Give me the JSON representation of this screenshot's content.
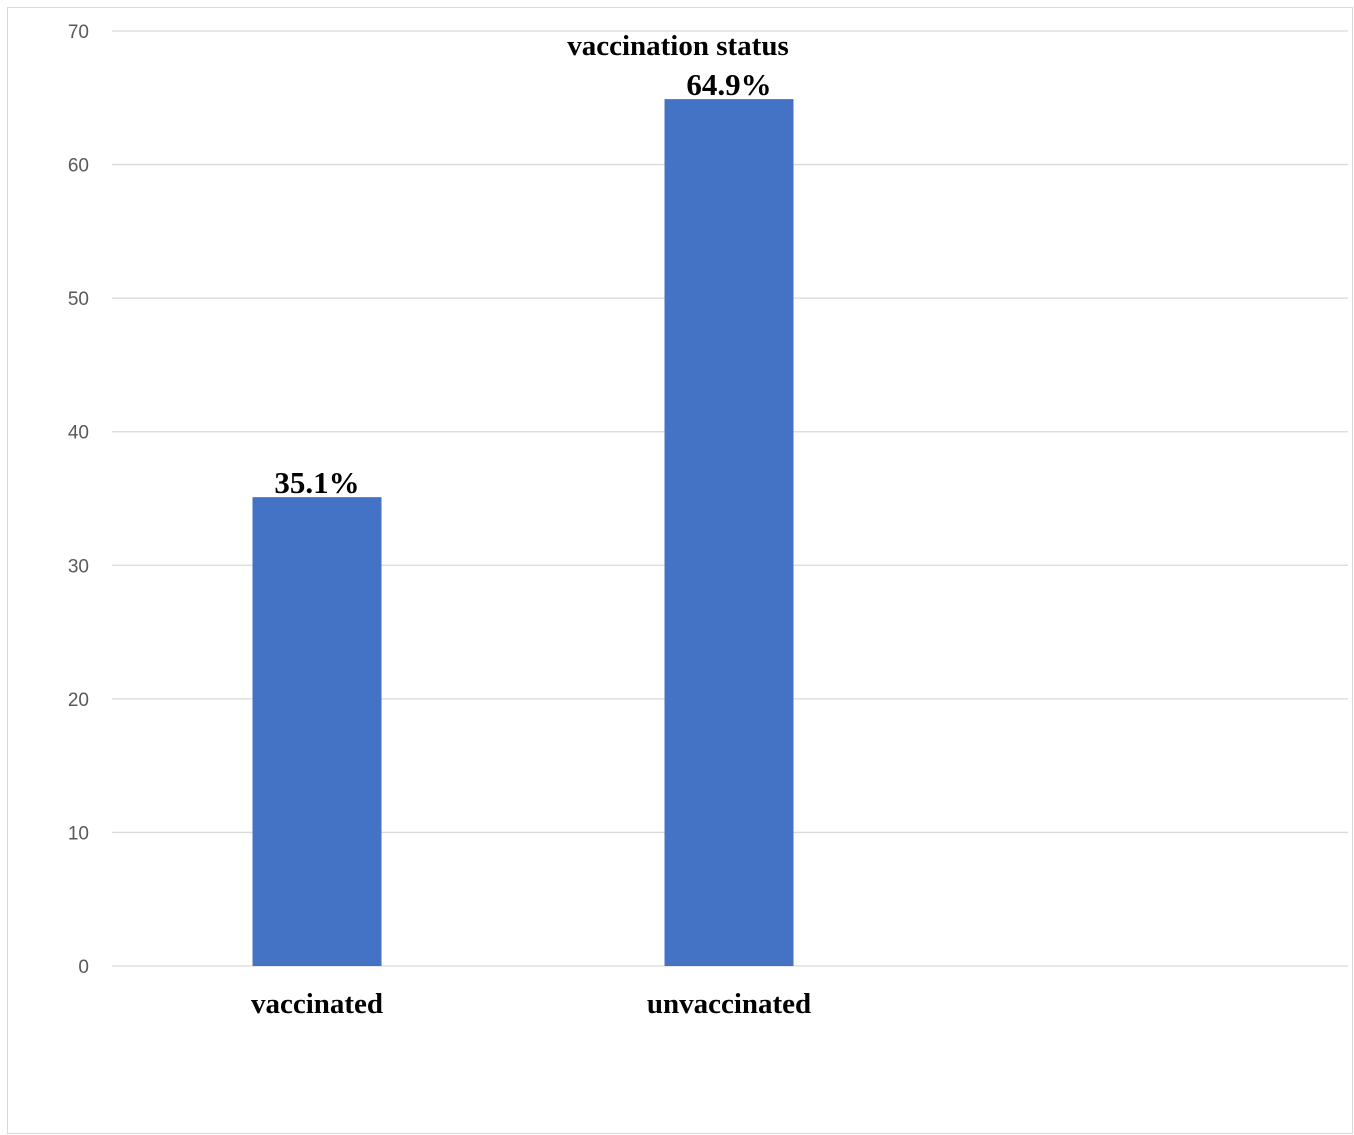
{
  "chart_data": {
    "type": "bar",
    "title": "vaccination status",
    "categories": [
      "vaccinated",
      "unvaccinated"
    ],
    "values": [
      35.1,
      64.9
    ],
    "data_labels": [
      "35.1%",
      "64.9%"
    ],
    "xlabel": "",
    "ylabel": "",
    "ylim": [
      0,
      70
    ],
    "yticks": [
      "0",
      "10",
      "20",
      "30",
      "40",
      "50",
      "60",
      "70"
    ],
    "grid": true,
    "legend": "none",
    "colors": {
      "bar": "#4472c4",
      "grid": "#d9d9d9",
      "axis_text": "#595959"
    }
  }
}
